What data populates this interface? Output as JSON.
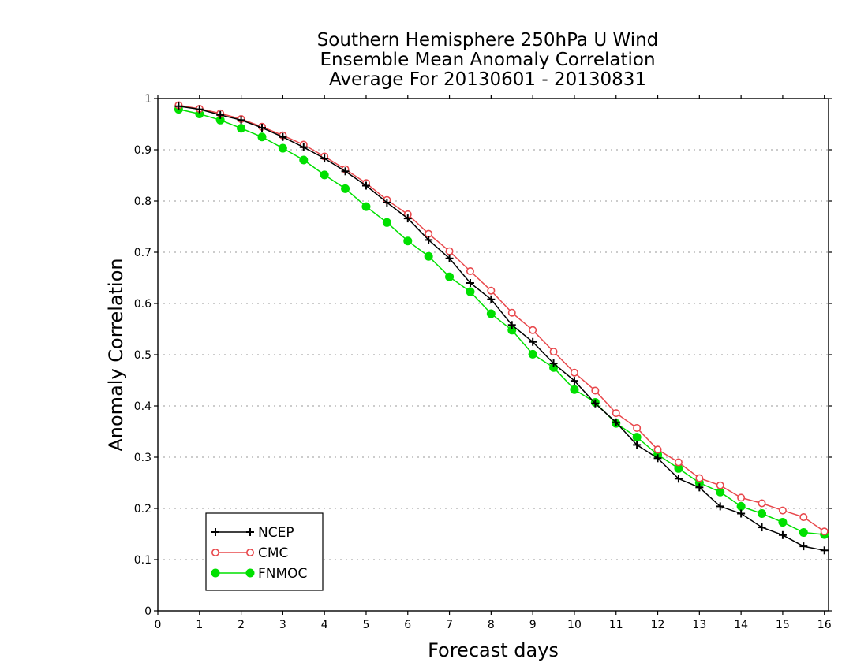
{
  "chart_data": {
    "type": "line",
    "title": [
      "Southern Hemisphere 250hPa U Wind",
      "Ensemble Mean Anomaly Correlation",
      "Average For 20130601 - 20130831"
    ],
    "xlabel": "Forecast days",
    "ylabel": "Anomaly Correlation",
    "xlim": [
      0,
      16.1
    ],
    "ylim": [
      0,
      1
    ],
    "x_ticks": [
      0,
      1,
      2,
      3,
      4,
      5,
      6,
      7,
      8,
      9,
      10,
      11,
      12,
      13,
      14,
      15,
      16
    ],
    "y_ticks": [
      0,
      0.1,
      0.2,
      0.3,
      0.4,
      0.5,
      0.6,
      0.7,
      0.8,
      0.9,
      1
    ],
    "y_tick_labels": [
      "0",
      "0.1",
      "0.2",
      "0.3",
      "0.4",
      "0.5",
      "0.6",
      "0.7",
      "0.8",
      "0.9",
      "1"
    ],
    "grid": "horizontal-dotted",
    "legend_position": "bottom-left",
    "x": [
      0.5,
      1,
      1.5,
      2,
      2.5,
      3,
      3.5,
      4,
      4.5,
      5,
      5.5,
      6,
      6.5,
      7,
      7.5,
      8,
      8.5,
      9,
      9.5,
      10,
      10.5,
      11,
      11.5,
      12,
      12.5,
      13,
      13.5,
      14,
      14.5,
      15,
      15.5,
      16
    ],
    "series": [
      {
        "name": "NCEP",
        "color": "#000000",
        "marker": "plus",
        "values": [
          0.985,
          0.979,
          0.968,
          0.958,
          0.943,
          0.925,
          0.905,
          0.883,
          0.858,
          0.83,
          0.797,
          0.766,
          0.724,
          0.688,
          0.64,
          0.608,
          0.558,
          0.525,
          0.483,
          0.449,
          0.405,
          0.368,
          0.324,
          0.298,
          0.258,
          0.241,
          0.204,
          0.19,
          0.163,
          0.148,
          0.126,
          0.118
        ]
      },
      {
        "name": "CMC",
        "color": "#e8484c",
        "marker": "open-circle",
        "values": [
          0.987,
          0.98,
          0.971,
          0.96,
          0.945,
          0.928,
          0.91,
          0.887,
          0.862,
          0.835,
          0.802,
          0.774,
          0.736,
          0.702,
          0.663,
          0.625,
          0.582,
          0.548,
          0.506,
          0.465,
          0.43,
          0.386,
          0.357,
          0.315,
          0.29,
          0.259,
          0.245,
          0.221,
          0.21,
          0.196,
          0.183,
          0.155
        ]
      },
      {
        "name": "FNMOC",
        "color": "#00e000",
        "marker": "filled-circle",
        "values": [
          0.979,
          0.97,
          0.958,
          0.942,
          0.925,
          0.903,
          0.88,
          0.851,
          0.824,
          0.789,
          0.758,
          0.722,
          0.692,
          0.652,
          0.623,
          0.58,
          0.548,
          0.501,
          0.475,
          0.432,
          0.407,
          0.366,
          0.339,
          0.305,
          0.278,
          0.25,
          0.232,
          0.204,
          0.19,
          0.173,
          0.153,
          0.149
        ]
      }
    ]
  }
}
